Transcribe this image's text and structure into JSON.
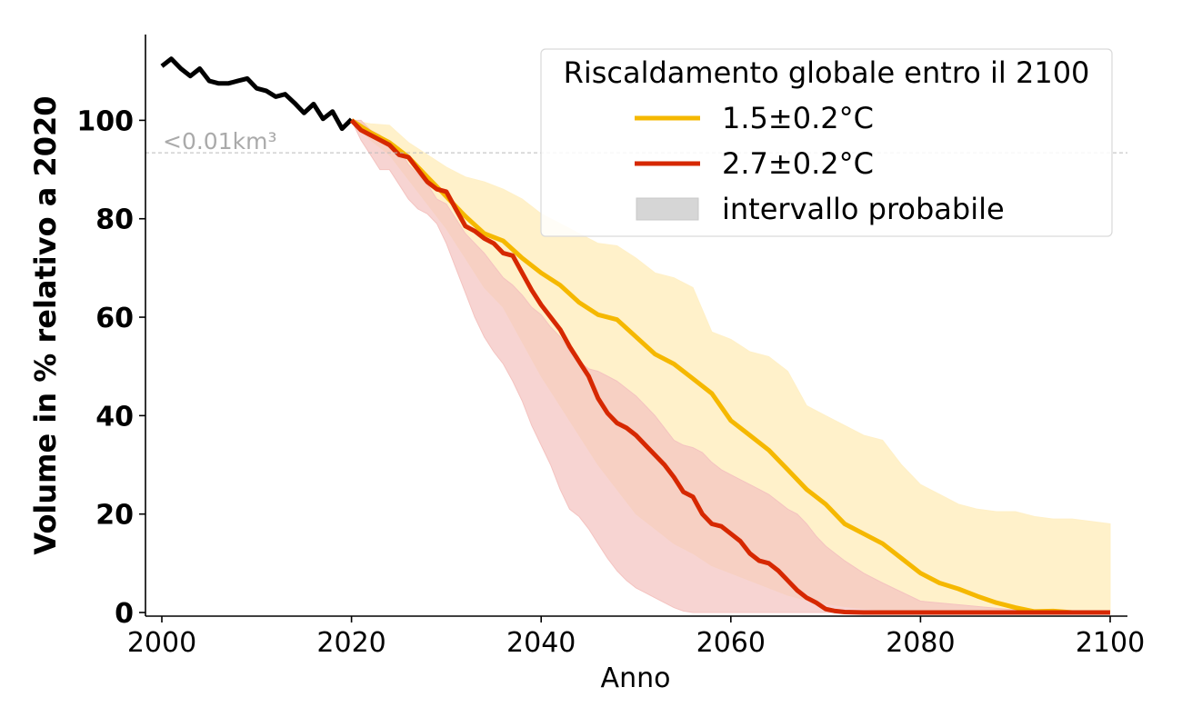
{
  "chart_data": {
    "type": "line",
    "xlabel": "Anno",
    "ylabel": "Volume in % relativo a 2020",
    "xlim": [
      2000,
      2100
    ],
    "ylim": [
      0,
      115
    ],
    "xticks": [
      2000,
      2020,
      2040,
      2060,
      2080,
      2100
    ],
    "yticks": [
      0,
      20,
      40,
      60,
      80,
      100
    ],
    "grid": false,
    "legend": {
      "title": "Riscaldamento globale entro il 2100",
      "placement": "top-right",
      "entries": [
        "1.5±0.2°C",
        "2.7±0.2°C",
        "intervallo probabile"
      ]
    },
    "annotation": {
      "text": "<0.01km³",
      "y": 93.4
    },
    "colors": {
      "observed": "#000000",
      "low": "#f5b800",
      "high": "#d62800",
      "low_band": "#fff0c7",
      "high_band": "#f4c3c0",
      "legend_band": "#d6d6d6",
      "threshold": "#bbbbbb"
    },
    "series": [
      {
        "x": [
          2000,
          2001,
          2002,
          2003,
          2004,
          2005,
          2006,
          2007,
          2008,
          2009,
          2010,
          2011,
          2012,
          2013,
          2014,
          2015,
          2016,
          2017,
          2018,
          2019,
          2020
        ],
        "values": [
          111,
          112.5,
          110.5,
          109,
          110.5,
          108,
          107.5,
          107.5,
          108,
          108.5,
          106.5,
          106,
          104.8,
          105.3,
          103.5,
          101.5,
          103.3,
          100.3,
          101.8,
          98.3,
          100.2
        ]
      },
      {
        "name": "1.5±0.2°C",
        "x": [
          2020,
          2022,
          2024,
          2026,
          2028,
          2030,
          2032,
          2034,
          2036,
          2038,
          2040,
          2042,
          2044,
          2046,
          2048,
          2050,
          2052,
          2054,
          2056,
          2058,
          2060,
          2062,
          2064,
          2066,
          2068,
          2070,
          2072,
          2074,
          2076,
          2078,
          2080,
          2082,
          2084,
          2086,
          2088,
          2090,
          2092,
          2094,
          2096,
          2098,
          2100
        ],
        "values": [
          100,
          97.5,
          95.5,
          92.5,
          88.5,
          84.5,
          80.5,
          77,
          75.5,
          72,
          69,
          66.5,
          63,
          60.5,
          59.5,
          56,
          52.5,
          50.5,
          47.5,
          44.5,
          39,
          36,
          33,
          29,
          25,
          22,
          18,
          16,
          14,
          11,
          8,
          6,
          4.8,
          3.3,
          2,
          1,
          0.2,
          0.3,
          0,
          0,
          0
        ],
        "band_upper": [
          100,
          99.3,
          99,
          95.5,
          93,
          90.5,
          88.5,
          87.5,
          86,
          84,
          81,
          79,
          77,
          75,
          74.5,
          72,
          69,
          68,
          66,
          57,
          55.5,
          53,
          52,
          49,
          42,
          40,
          38,
          36,
          35,
          30,
          26,
          24,
          22,
          21,
          20.5,
          20.5,
          19.5,
          19,
          19,
          18.5,
          18
        ],
        "band_lower": [
          100,
          96,
          93,
          88,
          83,
          78,
          72,
          66,
          62,
          55,
          48,
          42,
          36,
          30,
          25,
          20,
          17,
          14,
          12,
          9.5,
          8,
          6.5,
          5,
          3.5,
          2.5,
          1.8,
          1.2,
          0.8,
          0.5,
          0.3,
          0.2,
          0.1,
          0,
          0,
          0,
          0,
          0,
          0,
          0,
          0,
          0
        ]
      },
      {
        "name": "2.7±0.2°C",
        "x": [
          2020,
          2021,
          2022,
          2023,
          2024,
          2025,
          2026,
          2027,
          2028,
          2029,
          2030,
          2031,
          2032,
          2033,
          2034,
          2035,
          2036,
          2037,
          2038,
          2039,
          2040,
          2041,
          2042,
          2043,
          2044,
          2045,
          2046,
          2047,
          2048,
          2049,
          2050,
          2051,
          2052,
          2053,
          2054,
          2055,
          2056,
          2057,
          2058,
          2059,
          2060,
          2061,
          2062,
          2063,
          2064,
          2065,
          2066,
          2067,
          2068,
          2069,
          2070,
          2071,
          2072,
          2074,
          2076,
          2080,
          2090,
          2100
        ],
        "values": [
          100,
          98,
          97,
          96,
          95,
          93,
          92.5,
          90,
          87.5,
          86,
          85.5,
          82,
          78.5,
          77.5,
          76,
          75,
          73,
          72.5,
          69,
          65.5,
          62.5,
          60,
          57.5,
          54,
          51,
          48,
          43.5,
          40.5,
          38.5,
          37.5,
          36,
          34,
          32,
          30,
          27.5,
          24.5,
          23.5,
          20,
          18,
          17.5,
          16,
          14.5,
          12,
          10.5,
          10,
          8.5,
          6.5,
          4.5,
          3,
          2,
          0.7,
          0.3,
          0.1,
          0,
          0,
          0,
          0,
          0
        ],
        "band_upper": [
          100,
          100,
          98,
          97,
          95,
          94.5,
          91,
          89,
          87,
          84,
          83,
          80,
          77,
          75,
          73,
          70.5,
          68,
          66.5,
          64.5,
          62,
          60.5,
          58,
          56,
          53,
          51,
          49.5,
          49,
          48,
          47,
          45.5,
          44,
          42,
          40,
          37.5,
          35,
          34,
          33.5,
          32.5,
          30.5,
          29,
          28,
          27,
          26,
          25,
          24,
          22.5,
          21,
          20,
          18,
          15.5,
          13.5,
          12,
          10.5,
          8,
          6,
          2.3,
          0.5,
          0
        ],
        "band_lower": [
          100,
          96,
          93,
          90,
          90,
          87,
          84,
          82,
          81,
          79,
          75,
          70,
          65,
          60,
          56,
          53,
          50.5,
          47,
          43,
          38,
          34,
          30,
          25,
          21,
          19.5,
          17,
          14,
          11,
          8.5,
          6.5,
          5,
          4,
          3,
          2,
          1,
          0.3,
          0,
          0,
          0,
          0,
          0,
          0,
          0,
          0,
          0,
          0,
          0,
          0,
          0,
          0,
          0,
          0,
          0,
          0,
          0,
          0,
          0,
          0
        ]
      }
    ]
  }
}
